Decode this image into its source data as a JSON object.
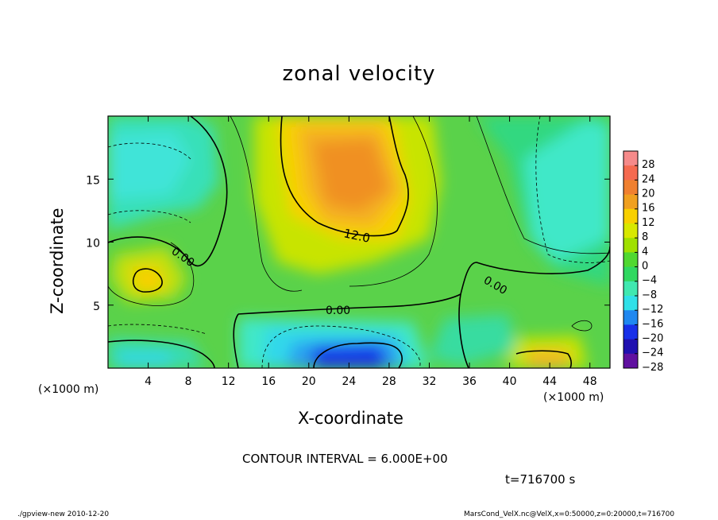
{
  "chart_data": {
    "type": "heatmap",
    "title": "zonal velocity",
    "xlabel": "X-coordinate",
    "ylabel": "Z-coordinate",
    "x_unit": "(×1000 m)",
    "y_unit": "(×1000 m)",
    "xlim": [
      0,
      50
    ],
    "ylim": [
      0,
      20
    ],
    "x_ticks": [
      4,
      8,
      12,
      16,
      20,
      24,
      28,
      32,
      36,
      40,
      44,
      48
    ],
    "y_ticks": [
      5,
      10,
      15
    ],
    "contour_labels": [
      "0.00",
      "12.0",
      "0.00",
      "0.00"
    ],
    "colorbar": {
      "levels": [
        28,
        24,
        20,
        16,
        12,
        8,
        4,
        0,
        -4,
        -8,
        -12,
        -16,
        -20,
        -24,
        -28
      ],
      "colors": [
        "#f58a8a",
        "#f56a50",
        "#f08030",
        "#f0a020",
        "#f8d000",
        "#d8e800",
        "#a0e000",
        "#50d830",
        "#30d860",
        "#40e8b0",
        "#30e0e8",
        "#2088f0",
        "#1830e8",
        "#2010b0",
        "#6010a0"
      ]
    },
    "features": [
      {
        "x": 25,
        "z": 15,
        "u": 18
      },
      {
        "x": 23,
        "z": 17,
        "u": 14
      },
      {
        "x": 4,
        "z": 7,
        "u": 10
      },
      {
        "x": 44,
        "z": 0.8,
        "u": 12
      },
      {
        "x": 24,
        "z": 1,
        "u": -18
      },
      {
        "x": 21,
        "z": 0.5,
        "u": -10
      },
      {
        "x": 3,
        "z": 16,
        "u": -8
      },
      {
        "x": 46,
        "z": 11,
        "u": -9
      },
      {
        "x": 15,
        "z": 8,
        "u": 4
      }
    ]
  },
  "footer": {
    "contour_interval": "CONTOUR INTERVAL = 6.000E+00",
    "time": "t=716700 s",
    "left_note": "./gpview-new  2010-12-20",
    "right_note": "MarsCond_VelX.nc@VelX,x=0:50000,z=0:20000,t=716700"
  }
}
